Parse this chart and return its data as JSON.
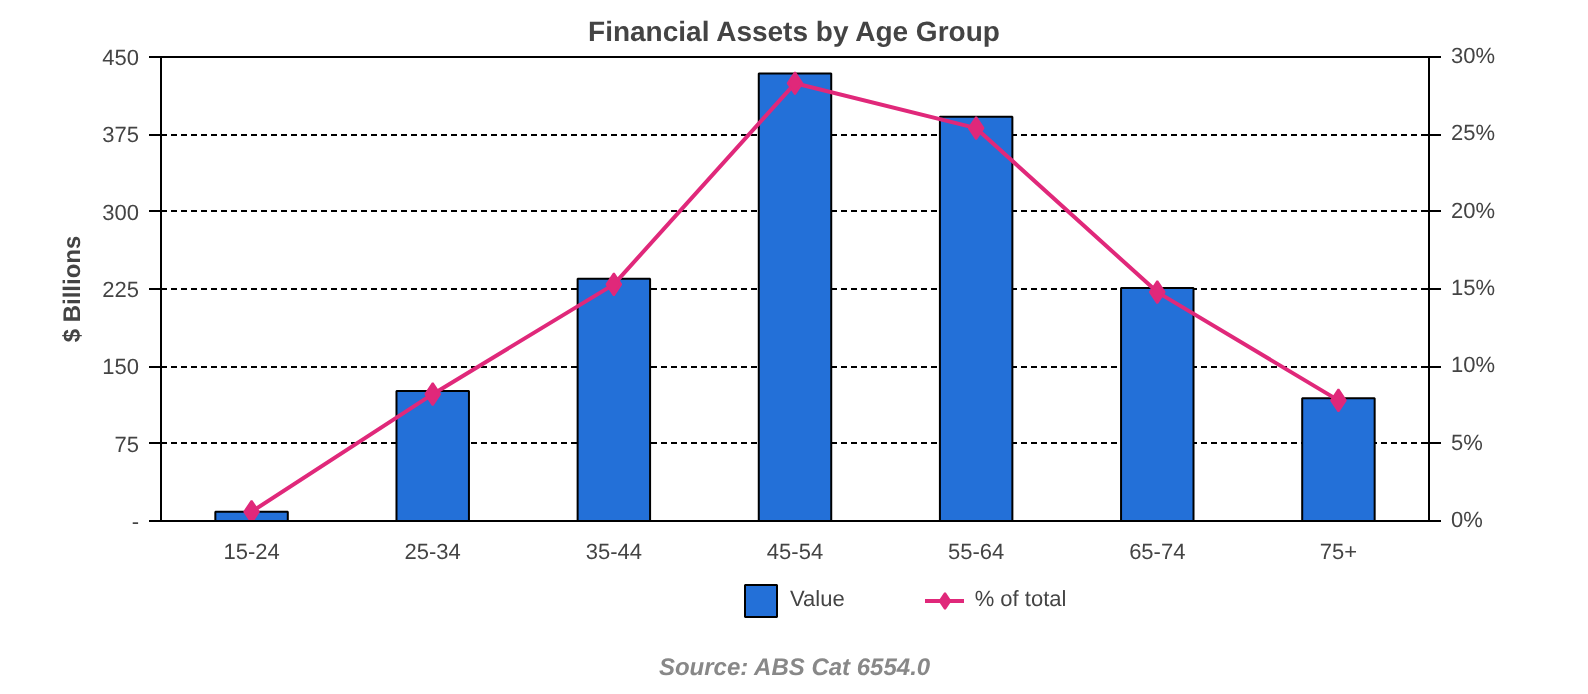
{
  "chart_data": {
    "type": "bar",
    "title": "Financial Assets by Age Group",
    "ylabel": "$ Billions",
    "categories": [
      "15-24",
      "25-34",
      "35-44",
      "45-54",
      "55-64",
      "65-74",
      "75+"
    ],
    "series": [
      {
        "name": "Value",
        "color": "#2370d8",
        "values": [
          9,
          126,
          235,
          434,
          392,
          226,
          119
        ]
      },
      {
        "name": "% of total",
        "type": "line",
        "axis": "y2",
        "color": "#e0287a",
        "values": [
          0.6,
          8.2,
          15.3,
          28.3,
          25.4,
          14.8,
          7.8
        ]
      }
    ],
    "ylim": [
      0,
      450
    ],
    "yticks": [
      {
        "value": 0,
        "label": "-"
      },
      75,
      150,
      225,
      300,
      375,
      450
    ],
    "y2lim": [
      0,
      30
    ],
    "y2ticks": [
      {
        "value": 0,
        "label": "0%"
      },
      {
        "value": 5,
        "label": "5%"
      },
      {
        "value": 10,
        "label": "10%"
      },
      {
        "value": 15,
        "label": "15%"
      },
      {
        "value": 20,
        "label": "20%"
      },
      {
        "value": 25,
        "label": "25%"
      },
      {
        "value": 30,
        "label": "30%"
      }
    ],
    "grid": "y",
    "legend": "bottom",
    "marker": "diamond",
    "annotations": [
      "Source: ABS Cat 6554.0"
    ]
  }
}
